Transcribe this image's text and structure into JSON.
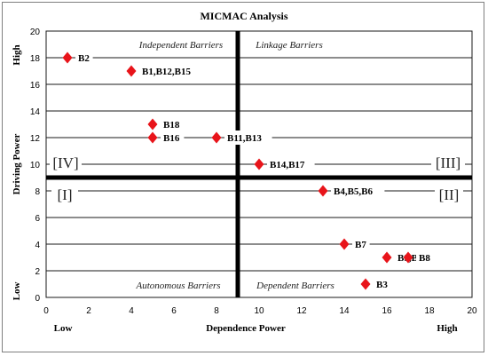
{
  "chart_data": {
    "type": "scatter",
    "title": "MICMAC Analysis",
    "xlabel": "Dependence Power",
    "ylabel": "Driving Power",
    "xlim": [
      0,
      20
    ],
    "ylim": [
      0,
      20
    ],
    "x_ticks": [
      "0",
      "2",
      "4",
      "6",
      "8",
      "10",
      "12",
      "14",
      "16",
      "18",
      "20"
    ],
    "y_ticks": [
      "0",
      "2",
      "4",
      "6",
      "8",
      "10",
      "12",
      "14",
      "16",
      "18",
      "20"
    ],
    "x_end_labels": {
      "low": "Low",
      "high": "High"
    },
    "y_end_labels": {
      "low": "Low",
      "high": "High"
    },
    "grid": "horizontal",
    "divider": {
      "x": 9,
      "y": 9
    },
    "marker_color": "#e8141a",
    "quadrant_titles": [
      {
        "id": "independent",
        "text": "Independent Barriers"
      },
      {
        "id": "linkage",
        "text": "Linkage Barriers"
      },
      {
        "id": "autonomous",
        "text": "Autonomous Barriers"
      },
      {
        "id": "dependent",
        "text": "Dependent Barriers"
      }
    ],
    "quadrant_numerals": [
      {
        "id": "IV",
        "text": "[IV]"
      },
      {
        "id": "III",
        "text": "[III]"
      },
      {
        "id": "I",
        "text": "[I]"
      },
      {
        "id": "II",
        "text": "[II]"
      }
    ],
    "points": [
      {
        "label": "B2",
        "x": 1,
        "y": 18
      },
      {
        "label": "B1,B12,B15",
        "x": 4,
        "y": 17
      },
      {
        "label": "B18",
        "x": 5,
        "y": 13
      },
      {
        "label": "B16",
        "x": 5,
        "y": 12
      },
      {
        "label": "B11,B13",
        "x": 8,
        "y": 12
      },
      {
        "label": "B14,B17",
        "x": 10,
        "y": 10
      },
      {
        "label": "B4,B5,B6",
        "x": 13,
        "y": 8
      },
      {
        "label": "B7",
        "x": 14,
        "y": 4
      },
      {
        "label": "B9,B10",
        "x": 16,
        "y": 3
      },
      {
        "label": "B8",
        "x": 17,
        "y": 3
      },
      {
        "label": "B3",
        "x": 15,
        "y": 1
      }
    ]
  }
}
